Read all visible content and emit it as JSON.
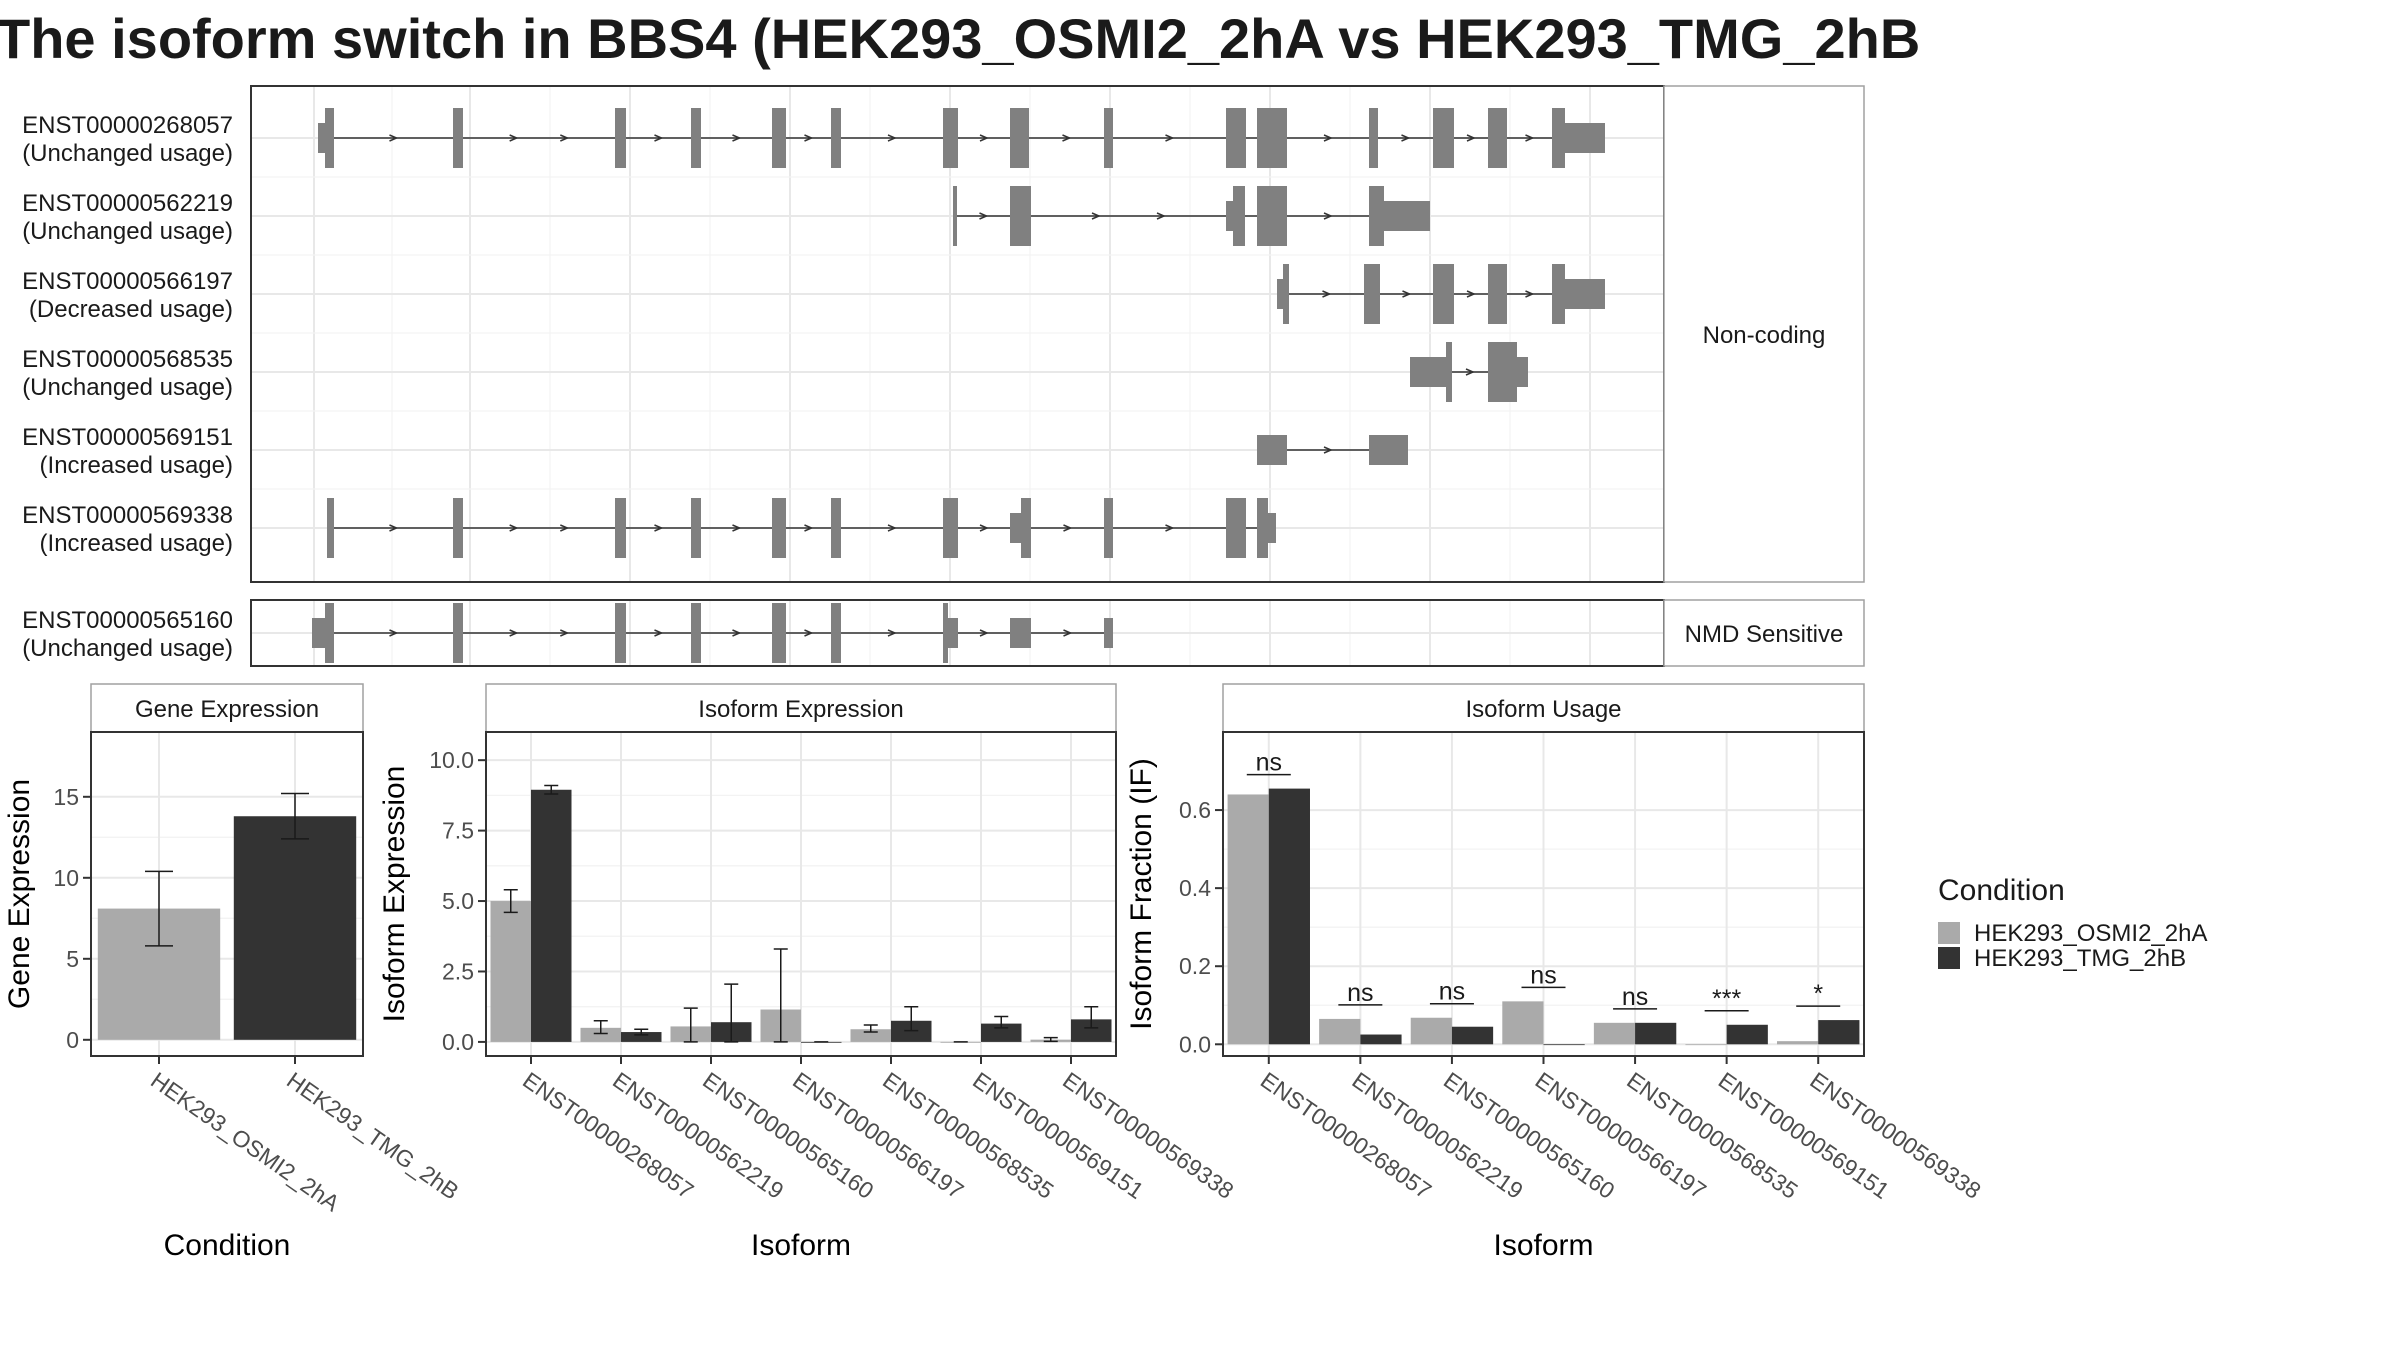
{
  "title": "The isoform switch in BBS4 (HEK293_OSMI2_2hA vs HEK293_TMG_2hB",
  "colors": {
    "HEK293_OSMI2_2hA": "#aaaaaa",
    "HEK293_TMG_2hB": "#333333",
    "exon": "#808080"
  },
  "structure_panels": [
    {
      "label": "Non-coding",
      "transcripts": [
        {
          "id": "ENST00000268057",
          "usage": "(Unchanged usage)"
        },
        {
          "id": "ENST00000562219",
          "usage": "(Unchanged usage)"
        },
        {
          "id": "ENST00000566197",
          "usage": "(Decreased usage)"
        },
        {
          "id": "ENST00000568535",
          "usage": "(Unchanged usage)"
        },
        {
          "id": "ENST00000569151",
          "usage": "(Increased usage)"
        },
        {
          "id": "ENST00000569338",
          "usage": "(Increased usage)"
        }
      ]
    },
    {
      "label": "NMD Sensitive",
      "transcripts": [
        {
          "id": "ENST00000565160",
          "usage": "(Unchanged usage)"
        }
      ]
    }
  ],
  "legend": {
    "title": "Condition",
    "entries": [
      "HEK293_OSMI2_2hA",
      "HEK293_TMG_2hB"
    ]
  },
  "chart_data": [
    {
      "type": "bar",
      "title": "Gene Expression",
      "xlabel": "Condition",
      "ylabel": "Gene Expression",
      "categories": [
        "HEK293_OSMI2_2hA",
        "HEK293_TMG_2hB"
      ],
      "values": [
        8.1,
        13.8
      ],
      "error": [
        [
          5.8,
          10.4
        ],
        [
          12.4,
          15.2
        ]
      ],
      "ylim": [
        -1,
        19
      ],
      "yticks": [
        0,
        5,
        10,
        15
      ],
      "ytick_labels": [
        "0",
        "5",
        "10",
        "15"
      ]
    },
    {
      "type": "bar",
      "title": "Isoform Expression",
      "xlabel": "Isoform",
      "ylabel": "Isoform Expression",
      "categories": [
        "ENST00000268057",
        "ENST00000562219",
        "ENST00000565160",
        "ENST00000566197",
        "ENST00000568535",
        "ENST00000569151",
        "ENST00000569338"
      ],
      "series": [
        {
          "name": "HEK293_OSMI2_2hA",
          "values": [
            5.0,
            0.5,
            0.55,
            1.15,
            0.45,
            0.0,
            0.08
          ],
          "error": [
            [
              4.6,
              5.4
            ],
            [
              0.3,
              0.75
            ],
            [
              0.0,
              1.2
            ],
            [
              0.0,
              3.3
            ],
            [
              0.35,
              0.6
            ],
            [
              0.0,
              0.0
            ],
            [
              0.02,
              0.15
            ]
          ]
        },
        {
          "name": "HEK293_TMG_2hB",
          "values": [
            8.95,
            0.35,
            0.7,
            0.0,
            0.75,
            0.65,
            0.8
          ],
          "error": [
            [
              8.8,
              9.1
            ],
            [
              0.25,
              0.45
            ],
            [
              0.0,
              2.05
            ],
            [
              0.0,
              0.0
            ],
            [
              0.4,
              1.25
            ],
            [
              0.5,
              0.9
            ],
            [
              0.5,
              1.25
            ]
          ]
        }
      ],
      "ylim": [
        -0.5,
        11.0
      ],
      "yticks": [
        0,
        2.5,
        5,
        7.5,
        10
      ],
      "ytick_labels": [
        "0.0",
        "2.5",
        "5.0",
        "7.5",
        "10.0"
      ]
    },
    {
      "type": "bar",
      "title": "Isoform Usage",
      "xlabel": "Isoform",
      "ylabel": "Isoform Fraction (IF)",
      "categories": [
        "ENST00000268057",
        "ENST00000562219",
        "ENST00000565160",
        "ENST00000566197",
        "ENST00000568535",
        "ENST00000569151",
        "ENST00000569338"
      ],
      "series": [
        {
          "name": "HEK293_OSMI2_2hA",
          "values": [
            0.64,
            0.065,
            0.068,
            0.11,
            0.055,
            0.0,
            0.008
          ]
        },
        {
          "name": "HEK293_TMG_2hB",
          "values": [
            0.655,
            0.025,
            0.045,
            0.0,
            0.055,
            0.05,
            0.062
          ]
        }
      ],
      "significance": [
        "ns",
        "ns",
        "ns",
        "ns",
        "ns",
        "***",
        "*"
      ],
      "ylim": [
        -0.03,
        0.8
      ],
      "yticks": [
        0,
        0.2,
        0.4,
        0.6
      ],
      "ytick_labels": [
        "0.0",
        "0.2",
        "0.4",
        "0.6"
      ]
    }
  ]
}
